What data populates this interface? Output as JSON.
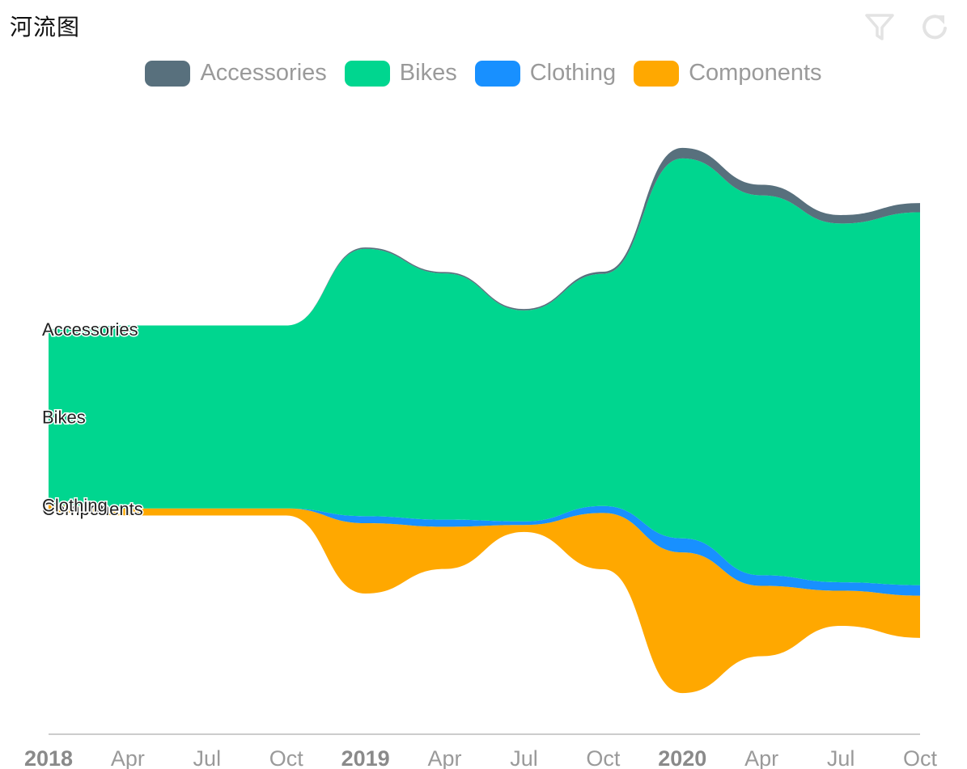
{
  "title": "河流图",
  "toolbar": [
    {
      "name": "filter-icon",
      "color": "#e3e3e3"
    },
    {
      "name": "refresh-icon",
      "color": "#e3e3e3"
    }
  ],
  "chart_data": {
    "type": "themeRiver",
    "title": "河流图",
    "dates": [
      "2018-01",
      "2018-04",
      "2018-07",
      "2018-10",
      "2019-01",
      "2019-04",
      "2019-07",
      "2019-10",
      "2020-01",
      "2020-04",
      "2020-07",
      "2020-10"
    ],
    "series": [
      {
        "name": "Components",
        "color": "#ffa800",
        "values": [
          1,
          1,
          1,
          1,
          10,
          6,
          1,
          8,
          20,
          10,
          5,
          6
        ]
      },
      {
        "name": "Clothing",
        "color": "#1890ff",
        "values": [
          0,
          0,
          0,
          0,
          1,
          1,
          0.5,
          1,
          2,
          1.5,
          1.2,
          1.5
        ]
      },
      {
        "name": "Bikes",
        "color": "#00d68f",
        "values": [
          25,
          26,
          26,
          26,
          38,
          35,
          30,
          33,
          54,
          54,
          51,
          53
        ]
      },
      {
        "name": "Accessories",
        "color": "#58707d",
        "values": [
          0,
          0,
          0,
          0,
          0.2,
          0.2,
          0.2,
          0.3,
          1.5,
          1.5,
          1.2,
          1.3
        ]
      }
    ],
    "legend": [
      "Accessories",
      "Bikes",
      "Clothing",
      "Components"
    ],
    "x_ticks": [
      "2018",
      "Apr",
      "Jul",
      "Oct",
      "2019",
      "Apr",
      "Jul",
      "Oct",
      "2020",
      "Apr",
      "Jul",
      "Oct"
    ],
    "year_ticks": [
      "2018",
      "2019",
      "2020"
    ]
  }
}
